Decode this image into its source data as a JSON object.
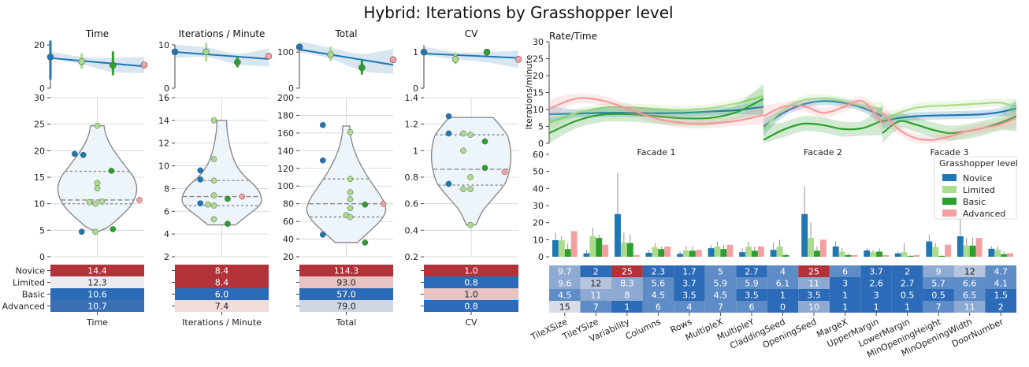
{
  "figure_title": "Hybrid: Iterations by Grasshopper level",
  "levels": [
    "Novice",
    "Limited",
    "Basic",
    "Advanced"
  ],
  "colors": {
    "Novice": "#1f77b4",
    "Limited": "#aadc8c",
    "Basic": "#2ca02c",
    "Advanced": "#f4a0a0"
  },
  "chart_data": [
    {
      "type": "line",
      "title": "Time",
      "ylim": [
        0,
        20
      ],
      "yticks": [
        0,
        20
      ],
      "points": [
        14.4,
        12.3,
        10.6,
        10.7
      ],
      "ci": [
        [
          13.8,
          17.0
        ],
        [
          11.0,
          14.5
        ],
        [
          7.5,
          14.0
        ],
        [
          7.0,
          14.5
        ]
      ],
      "err": [
        [
          4,
          24
        ],
        [
          9,
          16
        ],
        [
          6,
          17
        ],
        [
          10.7,
          10.7
        ]
      ]
    },
    {
      "type": "line",
      "title": "Iterations / Minute",
      "ylim": [
        0,
        10
      ],
      "yticks": [
        0,
        10
      ],
      "points": [
        8.4,
        8.4,
        6.0,
        7.4
      ],
      "ci": [
        [
          7.0,
          10.0
        ],
        [
          7.2,
          9.4
        ],
        [
          5.5,
          8.0
        ],
        [
          5.0,
          9.2
        ]
      ],
      "err": [
        [
          8.4,
          8.4
        ],
        [
          6.2,
          10.4
        ],
        [
          4.8,
          7.2
        ],
        [
          7.4,
          7.4
        ]
      ]
    },
    {
      "type": "line",
      "title": "Total",
      "ylim": [
        0,
        120
      ],
      "yticks": [
        0,
        100
      ],
      "points": [
        114.3,
        93.0,
        57.0,
        79.0
      ],
      "ci": [
        [
          100,
          130
        ],
        [
          82,
          112
        ],
        [
          48,
          95
        ],
        [
          40,
          110
        ]
      ],
      "err": [
        [
          114.3,
          114.3
        ],
        [
          75,
          115
        ],
        [
          38,
          78
        ],
        [
          79,
          79
        ]
      ]
    },
    {
      "type": "line",
      "title": "CV",
      "ylim": [
        0,
        1.2
      ],
      "yticks": [
        0,
        1
      ],
      "points": [
        1.0,
        0.8,
        1.0,
        0.8
      ],
      "ci": [
        [
          0.92,
          1.15
        ],
        [
          0.8,
          1.0
        ],
        [
          0.72,
          1.0
        ],
        [
          0.55,
          1.05
        ]
      ],
      "err": [
        [
          1.0,
          1.0
        ],
        [
          0.67,
          0.98
        ],
        [
          0.9,
          1.08
        ],
        [
          0.8,
          0.8
        ]
      ]
    }
  ],
  "violins": [
    {
      "ylim": [
        0,
        30
      ],
      "yticks": [
        0,
        5,
        10,
        15,
        20,
        25,
        30
      ],
      "range": [
        4.7,
        24.7
      ],
      "quartiles": [
        10.0,
        10.7,
        16.1
      ],
      "shape": [
        [
          4.7,
          0
        ],
        [
          5.5,
          0.25
        ],
        [
          7,
          0.5
        ],
        [
          9,
          0.78
        ],
        [
          11,
          0.95
        ],
        [
          13,
          1.0
        ],
        [
          15,
          0.92
        ],
        [
          17,
          0.72
        ],
        [
          19,
          0.52
        ],
        [
          21,
          0.34
        ],
        [
          23,
          0.22
        ],
        [
          24.7,
          0.17
        ]
      ],
      "points": [
        [
          19.4,
          "Novice",
          -0.58
        ],
        [
          19.2,
          "Novice",
          -0.36
        ],
        [
          4.7,
          "Novice",
          -0.4
        ],
        [
          24.7,
          "Limited",
          0.0
        ],
        [
          13.9,
          "Limited",
          0.0
        ],
        [
          12.9,
          "Limited",
          0.0
        ],
        [
          10.3,
          "Limited",
          -0.2
        ],
        [
          10.0,
          "Limited",
          -0.05
        ],
        [
          10.4,
          "Limited",
          0.12
        ],
        [
          4.7,
          "Limited",
          -0.05
        ],
        [
          16.2,
          "Basic",
          0.36
        ],
        [
          5.2,
          "Basic",
          0.4
        ],
        [
          10.7,
          "Advanced",
          1.08
        ]
      ]
    },
    {
      "ylim": [
        2,
        16
      ],
      "yticks": [
        2,
        4,
        6,
        8,
        10,
        12,
        14,
        16
      ],
      "range": [
        4.8,
        14.0
      ],
      "quartiles": [
        6.5,
        7.3,
        8.7
      ],
      "shape": [
        [
          4.8,
          0.35
        ],
        [
          5.5,
          0.6
        ],
        [
          6.5,
          0.95
        ],
        [
          7.3,
          1.0
        ],
        [
          8.2,
          0.85
        ],
        [
          9.2,
          0.55
        ],
        [
          10.2,
          0.35
        ],
        [
          11.5,
          0.22
        ],
        [
          13,
          0.14
        ],
        [
          14.0,
          0.12
        ]
      ],
      "points": [
        [
          9.6,
          "Novice",
          -0.55
        ],
        [
          8.8,
          "Novice",
          -0.55
        ],
        [
          6.7,
          "Novice",
          -0.55
        ],
        [
          14.0,
          "Limited",
          -0.2
        ],
        [
          10.6,
          "Limited",
          -0.2
        ],
        [
          8.7,
          "Limited",
          -0.2
        ],
        [
          7.4,
          "Limited",
          -0.2
        ],
        [
          6.6,
          "Limited",
          -0.35
        ],
        [
          6.5,
          "Limited",
          -0.2
        ],
        [
          5.3,
          "Limited",
          -0.2
        ],
        [
          7.1,
          "Basic",
          0.15
        ],
        [
          4.9,
          "Basic",
          0.15
        ],
        [
          7.3,
          "Advanced",
          0.52
        ]
      ]
    },
    {
      "ylim": [
        20,
        200
      ],
      "yticks": [
        20,
        40,
        60,
        80,
        100,
        120,
        140,
        160,
        180,
        200
      ],
      "range": [
        36,
        168
      ],
      "quartiles": [
        65,
        80,
        108
      ],
      "shape": [
        [
          36,
          0.28
        ],
        [
          45,
          0.5
        ],
        [
          60,
          0.85
        ],
        [
          72,
          1.0
        ],
        [
          85,
          0.92
        ],
        [
          100,
          0.7
        ],
        [
          115,
          0.48
        ],
        [
          130,
          0.3
        ],
        [
          145,
          0.17
        ],
        [
          160,
          0.1
        ],
        [
          168,
          0.09
        ]
      ],
      "points": [
        [
          169,
          "Novice",
          -0.6
        ],
        [
          129,
          "Novice",
          -0.6
        ],
        [
          45,
          "Novice",
          -0.6
        ],
        [
          161,
          "Limited",
          0.1
        ],
        [
          108,
          "Limited",
          0.1
        ],
        [
          93,
          "Limited",
          0.1
        ],
        [
          85,
          "Limited",
          0.1
        ],
        [
          75,
          "Limited",
          0.1
        ],
        [
          67,
          "Limited",
          0.0
        ],
        [
          65,
          "Limited",
          0.1
        ],
        [
          79,
          "Basic",
          0.48
        ],
        [
          36,
          "Basic",
          0.48
        ],
        [
          80,
          "Advanced",
          0.95
        ]
      ]
    },
    {
      "ylim": [
        0.2,
        1.4
      ],
      "yticks": [
        0.2,
        0.4,
        0.6,
        0.8,
        1.0,
        1.2,
        1.4
      ],
      "range": [
        0.44,
        1.25
      ],
      "quartiles": [
        0.74,
        0.86,
        1.12
      ],
      "shape": [
        [
          0.44,
          0.12
        ],
        [
          0.55,
          0.3
        ],
        [
          0.65,
          0.58
        ],
        [
          0.75,
          0.85
        ],
        [
          0.85,
          0.96
        ],
        [
          0.95,
          1.0
        ],
        [
          1.05,
          0.97
        ],
        [
          1.12,
          0.9
        ],
        [
          1.2,
          0.7
        ],
        [
          1.25,
          0.55
        ]
      ],
      "points": [
        [
          1.26,
          "Novice",
          -0.57
        ],
        [
          1.13,
          "Novice",
          -0.57
        ],
        [
          0.75,
          "Novice",
          -0.57
        ],
        [
          1.13,
          "Limited",
          -0.2
        ],
        [
          1.12,
          "Limited",
          -0.02
        ],
        [
          1.0,
          "Limited",
          -0.2
        ],
        [
          0.8,
          "Limited",
          -0.02
        ],
        [
          0.71,
          "Limited",
          -0.2
        ],
        [
          0.71,
          "Limited",
          -0.02
        ],
        [
          0.44,
          "Limited",
          -0.02
        ],
        [
          1.07,
          "Basic",
          0.35
        ],
        [
          0.87,
          "Basic",
          0.35
        ],
        [
          0.84,
          "Advanced",
          0.85
        ]
      ]
    }
  ],
  "summary_tables": [
    {
      "xlabel": "Time",
      "values": [
        "14.4",
        "12.3",
        "10.6",
        "10.7"
      ],
      "colors": [
        "#b2323a",
        "#e9ebf0",
        "#2c6bb8",
        "#3a6fb4"
      ]
    },
    {
      "xlabel": "Iterations / Minute",
      "values": [
        "8.4",
        "8.4",
        "6.0",
        "7.4"
      ],
      "colors": [
        "#b2323a",
        "#b2323a",
        "#2c6bb8",
        "#f1dcdc"
      ]
    },
    {
      "xlabel": "Total",
      "values": [
        "114.3",
        "93.0",
        "57.0",
        "79.0"
      ],
      "colors": [
        "#b2323a",
        "#e7c3c3",
        "#2c6bb8",
        "#cfd6e4"
      ]
    },
    {
      "xlabel": "CV",
      "values": [
        "1.0",
        "0.8",
        "1.0",
        "0.8"
      ],
      "colors": [
        "#b2323a",
        "#2c6bb8",
        "#e7c3c3",
        "#2c6bb8"
      ]
    }
  ],
  "rate_chart": {
    "title": "Rate/Time",
    "ylabel": "Iterations/minute",
    "ylim": [
      0,
      30
    ],
    "yticks": [
      0,
      5,
      10,
      15,
      20,
      25,
      30
    ],
    "facades": [
      {
        "label": "Facade 1",
        "curves": {
          "Novice": [
            8.6,
            8.8,
            9.0,
            9.0,
            8.9,
            9.0,
            9.4,
            9.8,
            10.8
          ],
          "Limited": [
            6.0,
            9.0,
            10.5,
            10.6,
            10.2,
            9.8,
            10.4,
            11.8,
            14.0
          ],
          "Basic": [
            3.0,
            6.6,
            8.5,
            8.6,
            8.0,
            7.4,
            7.5,
            9.2,
            13.2
          ],
          "Advanced": [
            10.2,
            13.2,
            12.6,
            10.0,
            7.3,
            6.0,
            5.9,
            6.6,
            8.4
          ]
        }
      },
      {
        "label": "Facade 2",
        "curves": {
          "Novice": [
            5.0,
            9.0,
            11.5,
            12.5,
            12.0,
            10.5,
            8.0
          ],
          "Limited": [
            4.2,
            10.0,
            12.8,
            13.2,
            12.5,
            11.0,
            10.0
          ],
          "Basic": [
            1.0,
            4.0,
            5.8,
            5.4,
            4.2,
            4.5,
            6.8
          ],
          "Advanced": [
            8.0,
            10.8,
            11.0,
            9.0,
            10.6,
            12.4,
            6.0
          ]
        }
      },
      {
        "label": "Facade 3",
        "curves": {
          "Novice": [
            6.5,
            7.5,
            8.0,
            8.2,
            8.3,
            8.4,
            8.6,
            9.2,
            10.3
          ],
          "Limited": [
            7.0,
            9.0,
            10.5,
            11.0,
            11.2,
            11.5,
            11.8,
            12.0,
            10.8
          ],
          "Basic": [
            3.0,
            6.5,
            5.5,
            4.0,
            3.0,
            3.5,
            4.5,
            6.0,
            8.0
          ],
          "Advanced": [
            9.0,
            4.0,
            1.5,
            1.0,
            2.0,
            3.5,
            4.5,
            5.5,
            7.5
          ]
        }
      }
    ]
  },
  "param_chart": {
    "ylim": [
      0,
      60
    ],
    "yticks": [
      0,
      10,
      20,
      30,
      40,
      50,
      60
    ],
    "categories": [
      "TileXSize",
      "TileYSize",
      "Variability",
      "Columns",
      "Rows",
      "MultipleX",
      "MultipleY",
      "CladdingSeed",
      "OpeningSeed",
      "MargeX",
      "UpperMargin",
      "LowerMargin",
      "MinOpeningHeight",
      "MinOpeningWidth",
      "DoorNumber"
    ],
    "legend": {
      "title": "Grasshopper level",
      "position": "right"
    },
    "series": [
      {
        "name": "Novice",
        "values": [
          9.7,
          2,
          25,
          2.3,
          1.7,
          5,
          2.7,
          4,
          25,
          6,
          3.7,
          2,
          9,
          12,
          4.7
        ],
        "err": [
          14,
          4,
          49,
          4,
          3,
          7,
          5,
          8,
          41,
          9,
          5,
          3,
          13,
          24,
          6
        ]
      },
      {
        "name": "Limited",
        "values": [
          9.6,
          12,
          8.3,
          5.6,
          3.7,
          5.9,
          5.9,
          6.1,
          11,
          3,
          2.6,
          2.7,
          5.7,
          6.6,
          4.1
        ],
        "err": [
          12,
          17,
          14,
          8,
          6,
          9,
          9,
          10,
          20,
          5,
          4,
          8,
          8,
          11,
          6
        ]
      },
      {
        "name": "Basic",
        "values": [
          4.5,
          11,
          8,
          4.5,
          3.5,
          4.5,
          3.5,
          1,
          3.5,
          1,
          3,
          0.5,
          0.5,
          6.5,
          1.5
        ],
        "err": [
          8,
          13,
          13,
          6,
          6,
          7,
          6,
          2,
          6,
          2,
          5,
          1,
          1,
          11,
          3
        ]
      },
      {
        "name": "Advanced",
        "values": [
          15,
          7,
          1,
          6,
          4,
          7,
          6,
          0,
          10,
          1,
          1,
          1,
          7,
          11,
          2
        ],
        "err": [
          15,
          7,
          1,
          6,
          4,
          7,
          6,
          0,
          10,
          1,
          1,
          1,
          7,
          11,
          2
        ]
      }
    ],
    "table": [
      [
        "9.7",
        "2",
        "25",
        "2.3",
        "1.7",
        "5",
        "2.7",
        "4",
        "25",
        "6",
        "3.7",
        "2",
        "9",
        "12",
        "4.7"
      ],
      [
        "9.6",
        "12",
        "8.3",
        "5.6",
        "3.7",
        "5.9",
        "5.9",
        "6.1",
        "11",
        "3",
        "2.6",
        "2.7",
        "5.7",
        "6.6",
        "4.1"
      ],
      [
        "4.5",
        "11",
        "8",
        "4.5",
        "3.5",
        "4.5",
        "3.5",
        "1",
        "3.5",
        "1",
        "3",
        "0.5",
        "0.5",
        "6.5",
        "1.5"
      ],
      [
        "15",
        "7",
        "1",
        "6",
        "4",
        "7",
        "6",
        "0",
        "10",
        "1",
        "1",
        "1",
        "7",
        "11",
        "2"
      ]
    ]
  }
}
